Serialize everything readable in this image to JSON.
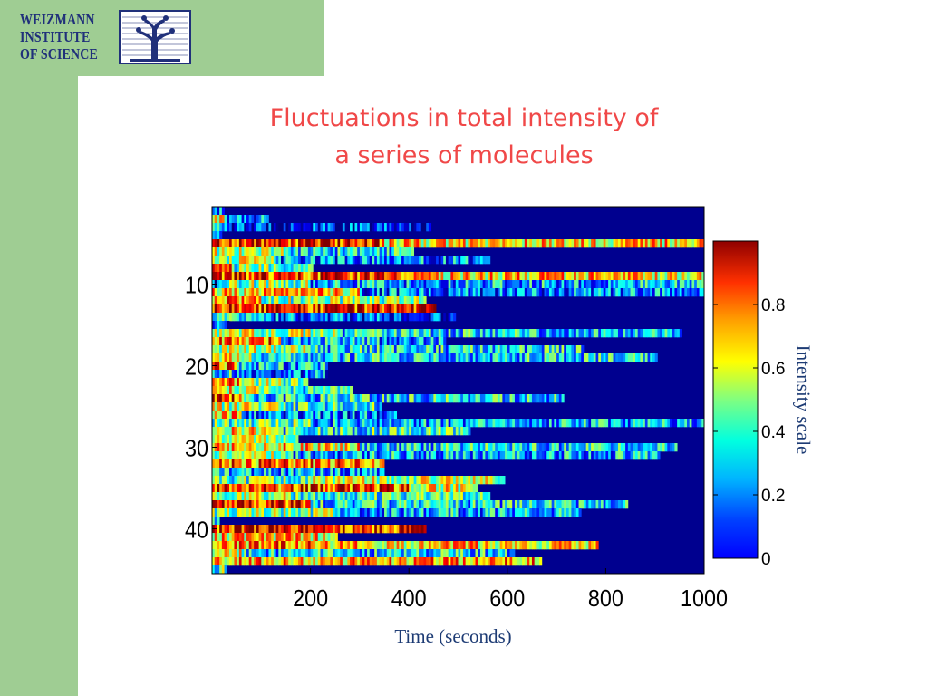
{
  "logo": {
    "lines": [
      "WEIZMANN",
      "INSTITUTE",
      "OF SCIENCE"
    ]
  },
  "colors": {
    "green_background": "#9fcd93",
    "title_color": "#f04848",
    "label_color": "#1d3b74",
    "heatmap_background": "#00008f",
    "logo_color": "#20307a"
  },
  "chart_data": {
    "type": "heatmap",
    "title_lines": [
      "Fluctuations in total intensity of",
      "a series of molecules"
    ],
    "xlabel": "Time (seconds)",
    "ylabel": "",
    "colorbar_label": "Intensity scale",
    "xlim": [
      0,
      1000
    ],
    "ylim": [
      0.5,
      45.5
    ],
    "x_ticks": [
      200,
      400,
      600,
      800,
      1000
    ],
    "y_ticks": [
      10,
      20,
      30,
      40
    ],
    "colorbar_range": [
      0,
      1
    ],
    "colorbar_ticks": [
      0,
      0.2,
      0.4,
      0.6,
      0.8
    ],
    "colorbar_tick_labels": [
      "0",
      "0.2",
      "0.4",
      "0.6",
      "0.8"
    ],
    "colormap": "jet",
    "background_value": 0,
    "time_step_s": 5,
    "rows": [
      {
        "molecule": 1,
        "end_s": 25,
        "phases": [
          {
            "until_s": 25,
            "level": 0.3
          }
        ]
      },
      {
        "molecule": 2,
        "end_s": 115,
        "phases": [
          {
            "until_s": 25,
            "level": 0.6
          },
          {
            "until_s": 115,
            "level": 0.25
          }
        ]
      },
      {
        "molecule": 3,
        "end_s": 445,
        "phases": [
          {
            "until_s": 20,
            "level": 0.5
          },
          {
            "until_s": 445,
            "level": 0.15
          }
        ]
      },
      {
        "molecule": 4,
        "end_s": 20,
        "phases": [
          {
            "until_s": 20,
            "level": 0.3
          }
        ]
      },
      {
        "molecule": 5,
        "end_s": 1000,
        "phases": [
          {
            "until_s": 350,
            "level": 0.85
          },
          {
            "until_s": 1000,
            "level": 0.65
          }
        ]
      },
      {
        "molecule": 6,
        "end_s": 410,
        "phases": [
          {
            "until_s": 150,
            "level": 0.55
          },
          {
            "until_s": 410,
            "level": 0.35
          }
        ]
      },
      {
        "molecule": 7,
        "end_s": 565,
        "phases": [
          {
            "until_s": 130,
            "level": 0.55
          },
          {
            "until_s": 565,
            "level": 0.25
          }
        ]
      },
      {
        "molecule": 8,
        "end_s": 205,
        "phases": [
          {
            "until_s": 40,
            "level": 0.8
          },
          {
            "until_s": 205,
            "level": 0.45
          }
        ]
      },
      {
        "molecule": 9,
        "end_s": 1000,
        "phases": [
          {
            "until_s": 400,
            "level": 0.82
          },
          {
            "until_s": 1000,
            "level": 0.65
          }
        ]
      },
      {
        "molecule": 10,
        "end_s": 1000,
        "phases": [
          {
            "until_s": 30,
            "level": 0.15
          },
          {
            "until_s": 200,
            "level": 0.5
          },
          {
            "until_s": 1000,
            "level": 0.3
          }
        ]
      },
      {
        "molecule": 11,
        "end_s": 1000,
        "phases": [
          {
            "until_s": 300,
            "level": 0.65
          },
          {
            "until_s": 1000,
            "level": 0.25
          }
        ]
      },
      {
        "molecule": 12,
        "end_s": 435,
        "phases": [
          {
            "until_s": 100,
            "level": 0.75
          },
          {
            "until_s": 435,
            "level": 0.5
          }
        ]
      },
      {
        "molecule": 13,
        "end_s": 455,
        "phases": [
          {
            "until_s": 455,
            "level": 0.85
          }
        ]
      },
      {
        "molecule": 14,
        "end_s": 495,
        "phases": [
          {
            "until_s": 120,
            "level": 0.4
          },
          {
            "until_s": 495,
            "level": 0.22
          }
        ]
      },
      {
        "molecule": 15,
        "end_s": 35,
        "phases": [
          {
            "until_s": 35,
            "level": 0.2
          }
        ]
      },
      {
        "molecule": 16,
        "end_s": 955,
        "phases": [
          {
            "until_s": 250,
            "level": 0.55
          },
          {
            "until_s": 955,
            "level": 0.35
          }
        ]
      },
      {
        "molecule": 17,
        "end_s": 475,
        "phases": [
          {
            "until_s": 140,
            "level": 0.75
          },
          {
            "until_s": 475,
            "level": 0.3
          }
        ]
      },
      {
        "molecule": 18,
        "end_s": 755,
        "phases": [
          {
            "until_s": 200,
            "level": 0.55
          },
          {
            "until_s": 755,
            "level": 0.35
          }
        ]
      },
      {
        "molecule": 19,
        "end_s": 905,
        "phases": [
          {
            "until_s": 80,
            "level": 0.6
          },
          {
            "until_s": 905,
            "level": 0.35
          }
        ]
      },
      {
        "molecule": 20,
        "end_s": 235,
        "phases": [
          {
            "until_s": 50,
            "level": 0.75
          },
          {
            "until_s": 235,
            "level": 0.3
          }
        ]
      },
      {
        "molecule": 21,
        "end_s": 235,
        "phases": [
          {
            "until_s": 40,
            "level": 0.35
          },
          {
            "until_s": 235,
            "level": 0.25
          }
        ]
      },
      {
        "molecule": 22,
        "end_s": 195,
        "phases": [
          {
            "until_s": 60,
            "level": 0.7
          },
          {
            "until_s": 195,
            "level": 0.5
          }
        ]
      },
      {
        "molecule": 23,
        "end_s": 285,
        "phases": [
          {
            "until_s": 120,
            "level": 0.6
          },
          {
            "until_s": 285,
            "level": 0.4
          }
        ]
      },
      {
        "molecule": 24,
        "end_s": 715,
        "phases": [
          {
            "until_s": 60,
            "level": 0.85
          },
          {
            "until_s": 715,
            "level": 0.35
          }
        ]
      },
      {
        "molecule": 25,
        "end_s": 345,
        "phases": [
          {
            "until_s": 150,
            "level": 0.55
          },
          {
            "until_s": 345,
            "level": 0.4
          }
        ]
      },
      {
        "molecule": 26,
        "end_s": 375,
        "phases": [
          {
            "until_s": 60,
            "level": 0.7
          },
          {
            "until_s": 375,
            "level": 0.25
          }
        ]
      },
      {
        "molecule": 27,
        "end_s": 1000,
        "phases": [
          {
            "until_s": 200,
            "level": 0.45
          },
          {
            "until_s": 1000,
            "level": 0.3
          }
        ]
      },
      {
        "molecule": 28,
        "end_s": 525,
        "phases": [
          {
            "until_s": 120,
            "level": 0.65
          },
          {
            "until_s": 525,
            "level": 0.4
          }
        ]
      },
      {
        "molecule": 29,
        "end_s": 175,
        "phases": [
          {
            "until_s": 175,
            "level": 0.6
          }
        ]
      },
      {
        "molecule": 30,
        "end_s": 945,
        "phases": [
          {
            "until_s": 300,
            "level": 0.65
          },
          {
            "until_s": 945,
            "level": 0.35
          }
        ]
      },
      {
        "molecule": 31,
        "end_s": 910,
        "phases": [
          {
            "until_s": 150,
            "level": 0.55
          },
          {
            "until_s": 910,
            "level": 0.3
          }
        ]
      },
      {
        "molecule": 32,
        "end_s": 350,
        "phases": [
          {
            "until_s": 350,
            "level": 0.75
          }
        ]
      },
      {
        "molecule": 33,
        "end_s": 350,
        "phases": [
          {
            "until_s": 30,
            "level": 0.45
          },
          {
            "until_s": 350,
            "level": 0.3
          }
        ]
      },
      {
        "molecule": 34,
        "end_s": 595,
        "phases": [
          {
            "until_s": 200,
            "level": 0.45
          },
          {
            "until_s": 595,
            "level": 0.55
          }
        ]
      },
      {
        "molecule": 35,
        "end_s": 540,
        "phases": [
          {
            "until_s": 400,
            "level": 0.8
          },
          {
            "until_s": 540,
            "level": 0.6
          }
        ]
      },
      {
        "molecule": 36,
        "end_s": 565,
        "phases": [
          {
            "until_s": 150,
            "level": 0.55
          },
          {
            "until_s": 565,
            "level": 0.4
          }
        ]
      },
      {
        "molecule": 37,
        "end_s": 845,
        "phases": [
          {
            "until_s": 200,
            "level": 0.85
          },
          {
            "until_s": 845,
            "level": 0.35
          }
        ]
      },
      {
        "molecule": 38,
        "end_s": 750,
        "phases": [
          {
            "until_s": 250,
            "level": 0.5
          },
          {
            "until_s": 750,
            "level": 0.3
          }
        ]
      },
      {
        "molecule": 39,
        "end_s": 15,
        "phases": [
          {
            "until_s": 15,
            "level": 0.3
          }
        ]
      },
      {
        "molecule": 40,
        "end_s": 435,
        "phases": [
          {
            "until_s": 435,
            "level": 0.85
          }
        ]
      },
      {
        "molecule": 41,
        "end_s": 255,
        "phases": [
          {
            "until_s": 255,
            "level": 0.65
          }
        ]
      },
      {
        "molecule": 42,
        "end_s": 785,
        "phases": [
          {
            "until_s": 200,
            "level": 0.75
          },
          {
            "until_s": 785,
            "level": 0.65
          }
        ]
      },
      {
        "molecule": 43,
        "end_s": 615,
        "phases": [
          {
            "until_s": 60,
            "level": 0.6
          },
          {
            "until_s": 615,
            "level": 0.35
          }
        ]
      },
      {
        "molecule": 44,
        "end_s": 670,
        "phases": [
          {
            "until_s": 670,
            "level": 0.7
          }
        ]
      },
      {
        "molecule": 45,
        "end_s": 30,
        "phases": [
          {
            "until_s": 30,
            "level": 0.45
          }
        ]
      }
    ]
  }
}
